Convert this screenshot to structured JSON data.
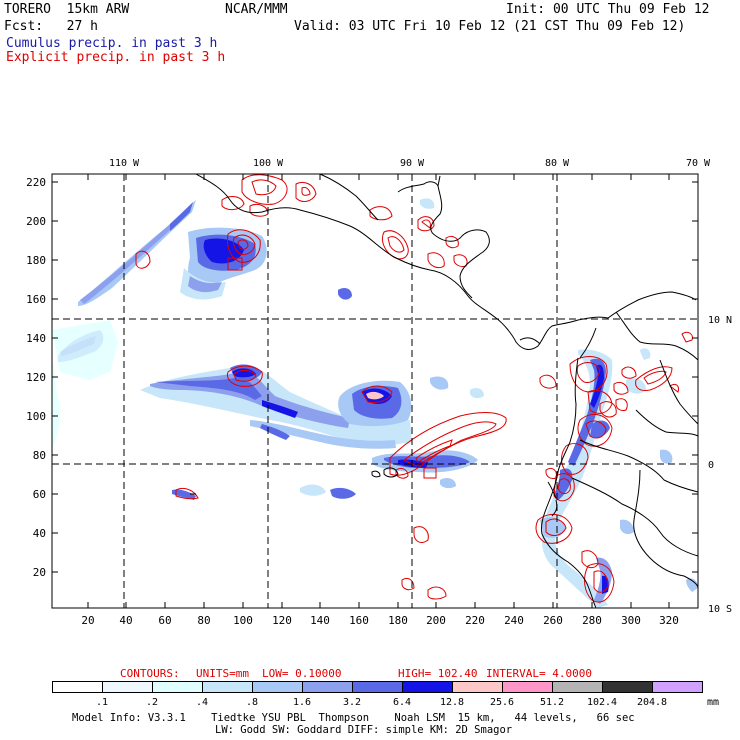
{
  "header": {
    "model": "TORERO  15km ARW",
    "org": "NCAR/MMM",
    "init": "Init: 00 UTC Thu 09 Feb 12",
    "fcst": "Fcst:   27 h",
    "valid": "Valid: 03 UTC Fri 10 Feb 12 (21 CST Thu 09 Feb 12)",
    "cumulus": "Cumulus precip. in past 3 h",
    "explicit": "Explicit precip. in past 3 h"
  },
  "map": {
    "top_lon_labels": [
      "110 W",
      "100 W",
      "90 W",
      "80 W",
      "70 W"
    ],
    "right_lat_labels": [
      "10 N",
      "0",
      "10 S"
    ],
    "y_ticks": [
      "220",
      "200",
      "180",
      "160",
      "140",
      "120",
      "100",
      "80",
      "60",
      "40",
      "20"
    ],
    "x_ticks": [
      "20",
      "40",
      "60",
      "80",
      "100",
      "120",
      "140",
      "160",
      "180",
      "200",
      "220",
      "240",
      "260",
      "280",
      "300",
      "320"
    ],
    "colors": {
      "contour": "#e00000",
      "coast": "#000000",
      "grid": "#000000"
    }
  },
  "contour_info": {
    "contours": "CONTOURS:",
    "units": "UNITS=mm",
    "low": "LOW= 0.10000",
    "high": "HIGH= 102.40",
    "interval": "INTERVAL= 4.0000"
  },
  "colorbar": {
    "labels": [
      ".1",
      ".2",
      ".4",
      ".8",
      "1.6",
      "3.2",
      "6.4",
      "12.8",
      "25.6",
      "51.2",
      "102.4",
      "204.8"
    ],
    "unit": "mm",
    "colors": [
      "#ffffff",
      "#f0f8ff",
      "#e0ffff",
      "#c8e6fa",
      "#a8c8f5",
      "#8ca0ee",
      "#5a6ae6",
      "#1414e6",
      "#ffc8c8",
      "#ff96c8",
      "#b4b4b4",
      "#323232",
      "#d2a0ff"
    ]
  },
  "footer": {
    "line1": "Model Info: V3.3.1    Tiedtke YSU PBL  Thompson    Noah LSM  15 km,   44 levels,   66 sec",
    "line2": "LW: Godd SW: Goddard DIFF: simple KM: 2D Smagor"
  }
}
